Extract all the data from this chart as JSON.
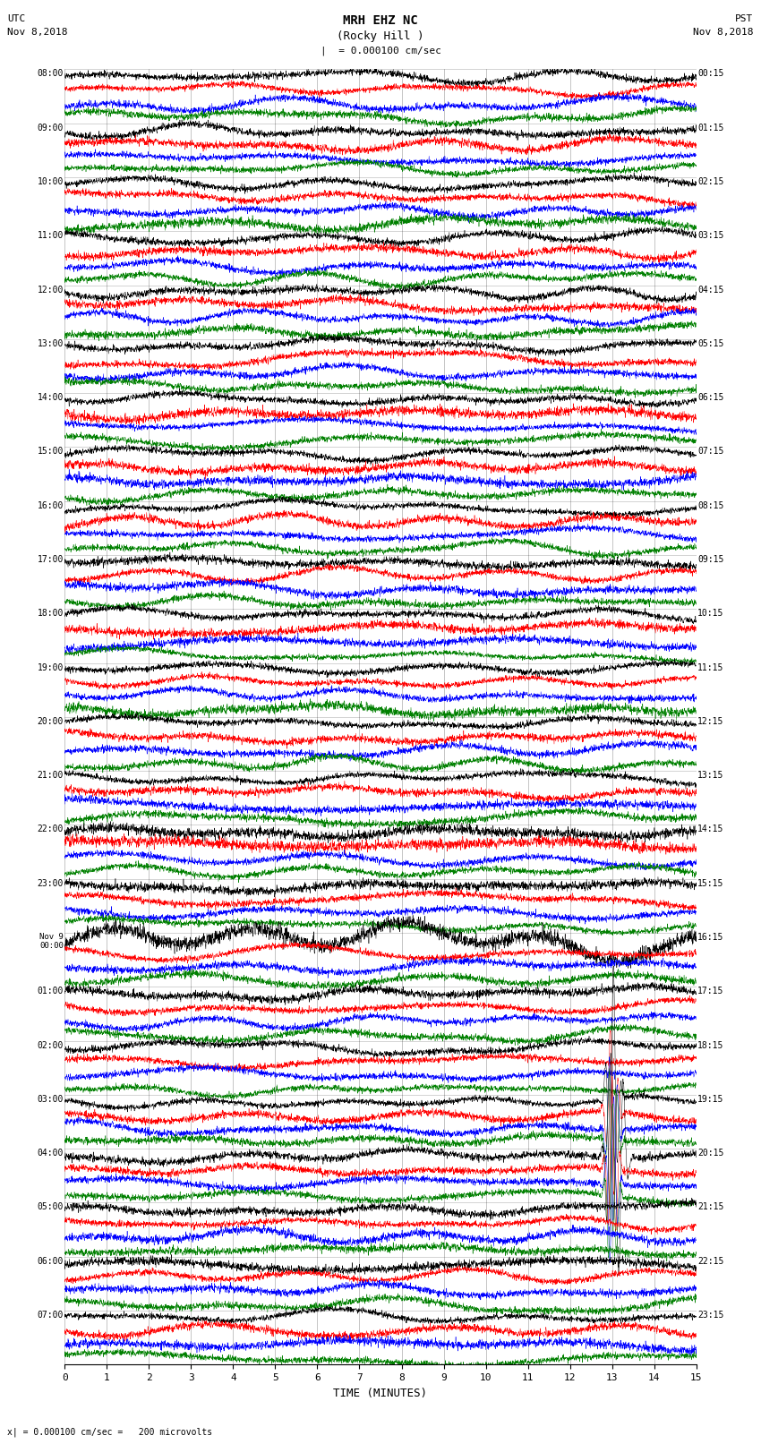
{
  "title_line1": "MRH EHZ NC",
  "title_line2": "(Rocky Hill )",
  "scale_label": "= 0.000100 cm/sec",
  "bottom_label": "= 0.000100 cm/sec =   200 microvolts",
  "xlabel": "TIME (MINUTES)",
  "utc_label_line1": "UTC",
  "utc_label_line2": "Nov 8,2018",
  "pst_label_line1": "PST",
  "pst_label_line2": "Nov 8,2018",
  "left_times": [
    "08:00",
    "09:00",
    "10:00",
    "11:00",
    "12:00",
    "13:00",
    "14:00",
    "15:00",
    "16:00",
    "17:00",
    "18:00",
    "19:00",
    "20:00",
    "21:00",
    "22:00",
    "23:00",
    "00:00",
    "01:00",
    "02:00",
    "03:00",
    "04:00",
    "05:00",
    "06:00",
    "07:00"
  ],
  "left_times_special": {
    "16": "Nov 9"
  },
  "right_times": [
    "00:15",
    "01:15",
    "02:15",
    "03:15",
    "04:15",
    "05:15",
    "06:15",
    "07:15",
    "08:15",
    "09:15",
    "10:15",
    "11:15",
    "12:15",
    "13:15",
    "14:15",
    "15:15",
    "16:15",
    "17:15",
    "18:15",
    "19:15",
    "20:15",
    "21:15",
    "22:15",
    "23:15"
  ],
  "n_rows": 24,
  "n_traces_per_row": 4,
  "trace_colors": [
    "black",
    "red",
    "blue",
    "green"
  ],
  "minutes": 15,
  "bg_color": "white",
  "fig_width": 8.5,
  "fig_height": 16.13,
  "dpi": 100,
  "noise_seed": 42,
  "xticks": [
    0,
    1,
    2,
    3,
    4,
    5,
    6,
    7,
    8,
    9,
    10,
    11,
    12,
    13,
    14,
    15
  ],
  "big_spike_row": 19,
  "big_spike_minute": 13.0,
  "big_spike_row2": 20,
  "big_spike_minute2": 13.1
}
